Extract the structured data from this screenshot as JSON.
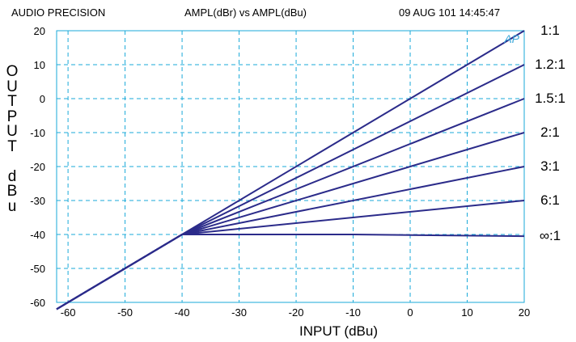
{
  "header": {
    "left": "AUDIO PRECISION",
    "center": "AMPL(dBr) vs AMPL(dBu)",
    "right": "09 AUG 101 14:45:47"
  },
  "logo_text": "AP",
  "colors": {
    "grid": "#1aa9d9",
    "frame": "#1aa9d9",
    "series": "#2b2b8a",
    "logo": "#3aa7d9"
  },
  "chart_data": {
    "type": "line",
    "title": "AMPL(dBr) vs AMPL(dBu)",
    "xlabel": "INPUT (dBu)",
    "ylabel": "OUTPUT dBu",
    "xlim": [
      -62,
      20
    ],
    "ylim": [
      -60,
      20
    ],
    "xticks": [
      -60,
      -50,
      -40,
      -30,
      -20,
      -10,
      0,
      10,
      20
    ],
    "yticks": [
      20,
      10,
      0,
      -10,
      -20,
      -30,
      -40,
      -50,
      -60
    ],
    "grid": true,
    "threshold": -40,
    "series": [
      {
        "name": "1:1",
        "x": [
          -62,
          -40,
          20
        ],
        "y": [
          -62,
          -40,
          20
        ]
      },
      {
        "name": "1.2:1",
        "x": [
          -62,
          -40,
          20
        ],
        "y": [
          -62,
          -40,
          10
        ]
      },
      {
        "name": "1.5:1",
        "x": [
          -62,
          -40,
          20
        ],
        "y": [
          -62,
          -40,
          0
        ]
      },
      {
        "name": "2:1",
        "x": [
          -62,
          -40,
          20
        ],
        "y": [
          -62,
          -40,
          -10
        ]
      },
      {
        "name": "3:1",
        "x": [
          -62,
          -40,
          20
        ],
        "y": [
          -62,
          -40,
          -20
        ]
      },
      {
        "name": "6:1",
        "x": [
          -62,
          -40,
          20
        ],
        "y": [
          -62,
          -40,
          -30
        ]
      },
      {
        "name": "∞:1",
        "x": [
          -62,
          -40,
          -10,
          20
        ],
        "y": [
          -62,
          -40,
          -40,
          -40.5
        ]
      }
    ]
  },
  "ratio_labels": [
    "1:1",
    "1.2:1",
    "1.5:1",
    "2:1",
    "3:1",
    "6:1",
    "∞:1"
  ],
  "axis_labels": {
    "y_stack": "O\nU\nT\nP\nU\nT\n\nd\nB\nu",
    "x": "INPUT (dBu)"
  }
}
